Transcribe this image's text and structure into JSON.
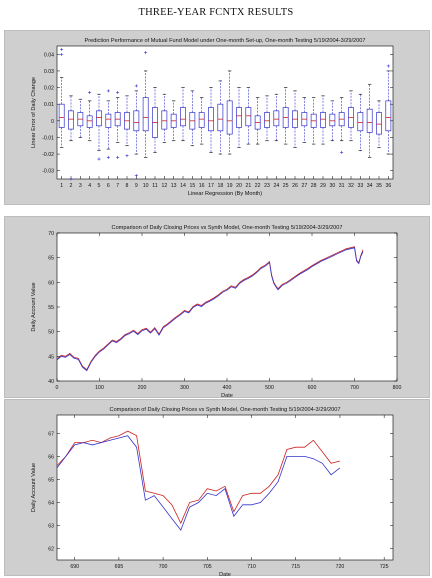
{
  "page_title": "THREE-YEAR FCNTX RESULTS",
  "chart_data": [
    {
      "type": "box",
      "title": "Prediction Performance of Mutual Fund Model under One-month Set-up, One-month Testing 5/19/2004-3/29/2007",
      "xlabel": "Linear Regression (By Month)",
      "ylabel": "Linear Error of Daily Change",
      "ylim": [
        -0.035,
        0.045
      ],
      "yticks": [
        -0.03,
        -0.02,
        -0.01,
        0,
        0.01,
        0.02,
        0.03,
        0.04
      ],
      "ytick_labels": [
        "-0.03",
        "-0.02",
        "-0.01",
        "0",
        "0.01",
        "0.02",
        "0.03",
        "0.04"
      ],
      "categories": [
        "1",
        "2",
        "3",
        "4",
        "5",
        "6",
        "7",
        "8",
        "9",
        "10",
        "11",
        "12",
        "13",
        "14",
        "15",
        "16",
        "17",
        "18",
        "19",
        "20",
        "21",
        "22",
        "23",
        "24",
        "25",
        "26",
        "27",
        "28",
        "29",
        "30",
        "31",
        "32",
        "33",
        "34",
        "35",
        "36"
      ],
      "grid": false,
      "box_color": "#3333cc",
      "median_color": "#cc2222",
      "boxes": [
        {
          "q1": -0.004,
          "median": 0.002,
          "q3": 0.01,
          "whisker_low": -0.016,
          "whisker_high": 0.026,
          "outliers": [
            0.04,
            0.043
          ]
        },
        {
          "q1": -0.005,
          "median": 0.001,
          "q3": 0.006,
          "whisker_low": -0.012,
          "whisker_high": 0.015,
          "outliers": [
            -0.035
          ]
        },
        {
          "q1": -0.003,
          "median": 0.001,
          "q3": 0.005,
          "whisker_low": -0.01,
          "whisker_high": 0.013,
          "outliers": []
        },
        {
          "q1": -0.004,
          "median": 0.0,
          "q3": 0.003,
          "whisker_low": -0.012,
          "whisker_high": 0.012,
          "outliers": [
            0.017
          ]
        },
        {
          "q1": -0.003,
          "median": 0.002,
          "q3": 0.006,
          "whisker_low": -0.018,
          "whisker_high": 0.016,
          "outliers": [
            -0.023
          ]
        },
        {
          "q1": -0.004,
          "median": 0.001,
          "q3": 0.004,
          "whisker_low": -0.017,
          "whisker_high": 0.012,
          "outliers": [
            -0.022,
            0.018
          ]
        },
        {
          "q1": -0.003,
          "median": 0.001,
          "q3": 0.005,
          "whisker_low": -0.013,
          "whisker_high": 0.014,
          "outliers": [
            0.017,
            -0.022
          ]
        },
        {
          "q1": -0.005,
          "median": 0.0,
          "q3": 0.005,
          "whisker_low": -0.015,
          "whisker_high": 0.015,
          "outliers": [
            -0.021
          ]
        },
        {
          "q1": -0.006,
          "median": -0.001,
          "q3": 0.006,
          "whisker_low": -0.02,
          "whisker_high": 0.018,
          "outliers": [
            -0.033,
            0.021
          ]
        },
        {
          "q1": -0.006,
          "median": 0.002,
          "q3": 0.014,
          "whisker_low": -0.022,
          "whisker_high": 0.03,
          "outliers": [
            0.041
          ]
        },
        {
          "q1": -0.01,
          "median": -0.001,
          "q3": 0.008,
          "whisker_low": -0.019,
          "whisker_high": 0.02,
          "outliers": []
        },
        {
          "q1": -0.005,
          "median": 0.0,
          "q3": 0.006,
          "whisker_low": -0.013,
          "whisker_high": 0.016,
          "outliers": []
        },
        {
          "q1": -0.004,
          "median": 0.0,
          "q3": 0.004,
          "whisker_low": -0.012,
          "whisker_high": 0.012,
          "outliers": []
        },
        {
          "q1": -0.003,
          "median": 0.001,
          "q3": 0.008,
          "whisker_low": -0.012,
          "whisker_high": 0.02,
          "outliers": []
        },
        {
          "q1": -0.005,
          "median": 0.0,
          "q3": 0.005,
          "whisker_low": -0.015,
          "whisker_high": 0.018,
          "outliers": []
        },
        {
          "q1": -0.004,
          "median": 0.001,
          "q3": 0.005,
          "whisker_low": -0.014,
          "whisker_high": 0.014,
          "outliers": []
        },
        {
          "q1": -0.006,
          "median": 0.0,
          "q3": 0.008,
          "whisker_low": -0.019,
          "whisker_high": 0.02,
          "outliers": []
        },
        {
          "q1": -0.006,
          "median": 0.001,
          "q3": 0.01,
          "whisker_low": -0.02,
          "whisker_high": 0.024,
          "outliers": []
        },
        {
          "q1": -0.008,
          "median": 0.0,
          "q3": 0.012,
          "whisker_low": -0.02,
          "whisker_high": 0.03,
          "outliers": []
        },
        {
          "q1": -0.004,
          "median": 0.003,
          "q3": 0.008,
          "whisker_low": -0.016,
          "whisker_high": 0.02,
          "outliers": []
        },
        {
          "q1": -0.003,
          "median": 0.003,
          "q3": 0.008,
          "whisker_low": -0.014,
          "whisker_high": 0.02,
          "outliers": []
        },
        {
          "q1": -0.005,
          "median": -0.001,
          "q3": 0.003,
          "whisker_low": -0.014,
          "whisker_high": 0.014,
          "outliers": []
        },
        {
          "q1": -0.004,
          "median": 0.0,
          "q3": 0.005,
          "whisker_low": -0.012,
          "whisker_high": 0.015,
          "outliers": []
        },
        {
          "q1": -0.003,
          "median": 0.001,
          "q3": 0.006,
          "whisker_low": -0.012,
          "whisker_high": 0.016,
          "outliers": []
        },
        {
          "q1": -0.004,
          "median": 0.002,
          "q3": 0.008,
          "whisker_low": -0.014,
          "whisker_high": 0.02,
          "outliers": []
        },
        {
          "q1": -0.004,
          "median": 0.001,
          "q3": 0.006,
          "whisker_low": -0.016,
          "whisker_high": 0.018,
          "outliers": []
        },
        {
          "q1": -0.003,
          "median": 0.001,
          "q3": 0.005,
          "whisker_low": -0.013,
          "whisker_high": 0.014,
          "outliers": []
        },
        {
          "q1": -0.004,
          "median": 0.0,
          "q3": 0.004,
          "whisker_low": -0.014,
          "whisker_high": 0.014,
          "outliers": []
        },
        {
          "q1": -0.004,
          "median": 0.001,
          "q3": 0.005,
          "whisker_low": -0.014,
          "whisker_high": 0.015,
          "outliers": []
        },
        {
          "q1": -0.003,
          "median": 0.0,
          "q3": 0.004,
          "whisker_low": -0.012,
          "whisker_high": 0.012,
          "outliers": []
        },
        {
          "q1": -0.003,
          "median": 0.001,
          "q3": 0.005,
          "whisker_low": -0.012,
          "whisker_high": 0.014,
          "outliers": [
            -0.019
          ]
        },
        {
          "q1": -0.004,
          "median": 0.002,
          "q3": 0.008,
          "whisker_low": -0.012,
          "whisker_high": 0.018,
          "outliers": []
        },
        {
          "q1": -0.006,
          "median": -0.001,
          "q3": 0.005,
          "whisker_low": -0.018,
          "whisker_high": 0.016,
          "outliers": []
        },
        {
          "q1": -0.007,
          "median": -0.001,
          "q3": 0.007,
          "whisker_low": -0.022,
          "whisker_high": 0.022,
          "outliers": []
        },
        {
          "q1": -0.008,
          "median": -0.002,
          "q3": 0.005,
          "whisker_low": -0.016,
          "whisker_high": 0.012,
          "outliers": []
        },
        {
          "q1": -0.006,
          "median": 0.002,
          "q3": 0.012,
          "whisker_low": -0.02,
          "whisker_high": 0.03,
          "outliers": [
            0.033
          ]
        }
      ]
    },
    {
      "type": "line",
      "title": "Comparison of Daily Closing Prices vs Synth Model, One-month Testing 5/19/2004-3/29/2007",
      "xlabel": "Date",
      "ylabel": "Daily Account Value",
      "xlim": [
        0,
        800
      ],
      "ylim": [
        40,
        70
      ],
      "xticks": [
        0,
        100,
        200,
        300,
        400,
        500,
        600,
        700,
        800
      ],
      "xtick_labels": [
        "0",
        "100",
        "200",
        "300",
        "400",
        "500",
        "600",
        "700",
        "800"
      ],
      "yticks": [
        40,
        45,
        50,
        55,
        60,
        65,
        70
      ],
      "ytick_labels": [
        "40",
        "45",
        "50",
        "55",
        "60",
        "65",
        "70"
      ],
      "grid": false,
      "series": [
        {
          "color": "#cc2222",
          "x": [
            0,
            10,
            20,
            30,
            40,
            50,
            60,
            70,
            80,
            90,
            100,
            110,
            120,
            130,
            140,
            150,
            160,
            170,
            180,
            190,
            200,
            210,
            220,
            230,
            240,
            250,
            260,
            270,
            280,
            290,
            300,
            310,
            320,
            330,
            340,
            350,
            360,
            370,
            380,
            390,
            400,
            410,
            420,
            430,
            440,
            450,
            460,
            470,
            480,
            490,
            500,
            505,
            510,
            515,
            520,
            530,
            540,
            550,
            560,
            570,
            580,
            590,
            600,
            610,
            620,
            630,
            640,
            650,
            660,
            670,
            680,
            690,
            700,
            705,
            710,
            715,
            720
          ],
          "y": [
            44.5,
            45.2,
            45.0,
            45.6,
            44.8,
            44.6,
            43.0,
            42.3,
            44.0,
            45.2,
            46.1,
            46.7,
            47.5,
            48.3,
            48.0,
            48.6,
            49.4,
            49.8,
            50.3,
            49.6,
            50.4,
            50.7,
            49.9,
            50.8,
            49.5,
            51.0,
            51.6,
            52.3,
            53.0,
            53.6,
            54.3,
            54.0,
            55.1,
            55.6,
            55.3,
            56.0,
            56.4,
            56.9,
            57.5,
            58.2,
            58.6,
            59.3,
            59.0,
            60.0,
            60.6,
            61.0,
            61.5,
            62.2,
            63.0,
            63.5,
            64.2,
            61.5,
            60.0,
            59.3,
            58.7,
            59.6,
            60.0,
            60.6,
            61.2,
            61.8,
            62.3,
            62.8,
            63.4,
            63.9,
            64.4,
            64.8,
            65.2,
            65.6,
            66.0,
            66.4,
            66.8,
            67.0,
            67.2,
            64.5,
            64.0,
            65.5,
            66.6
          ]
        },
        {
          "color": "#3333cc",
          "x": [
            0,
            10,
            20,
            30,
            40,
            50,
            60,
            70,
            80,
            90,
            100,
            110,
            120,
            130,
            140,
            150,
            160,
            170,
            180,
            190,
            200,
            210,
            220,
            230,
            240,
            250,
            260,
            270,
            280,
            290,
            300,
            310,
            320,
            330,
            340,
            350,
            360,
            370,
            380,
            390,
            400,
            410,
            420,
            430,
            440,
            450,
            460,
            470,
            480,
            490,
            500,
            505,
            510,
            515,
            520,
            530,
            540,
            550,
            560,
            570,
            580,
            590,
            600,
            610,
            620,
            630,
            640,
            650,
            660,
            670,
            680,
            690,
            700,
            705,
            710,
            715,
            720
          ],
          "y": [
            44.3,
            45.0,
            44.8,
            45.4,
            44.6,
            44.4,
            42.8,
            42.1,
            43.8,
            45.0,
            45.9,
            46.5,
            47.3,
            48.1,
            47.8,
            48.4,
            49.2,
            49.6,
            50.1,
            49.4,
            50.2,
            50.5,
            49.7,
            50.6,
            49.3,
            50.8,
            51.4,
            52.1,
            52.8,
            53.4,
            54.1,
            53.8,
            54.9,
            55.4,
            55.1,
            55.8,
            56.2,
            56.7,
            57.3,
            58.0,
            58.4,
            59.1,
            58.8,
            59.8,
            60.4,
            60.8,
            61.3,
            62.0,
            62.8,
            63.3,
            64.0,
            61.3,
            59.8,
            59.1,
            58.5,
            59.4,
            59.8,
            60.4,
            61.0,
            61.6,
            62.1,
            62.6,
            63.2,
            63.7,
            64.2,
            64.6,
            65.0,
            65.4,
            65.8,
            66.2,
            66.6,
            66.8,
            67.0,
            64.3,
            63.8,
            65.3,
            66.2
          ]
        }
      ]
    },
    {
      "type": "line",
      "title": "Comparison of Daily Closing Prices vs Synth Model, One-month Testing 5/19/2004-3/29/2007",
      "xlabel": "Date",
      "ylabel": "Daily Account Value",
      "xlim": [
        688,
        726
      ],
      "ylim": [
        61.5,
        67.8
      ],
      "xticks": [
        690,
        695,
        700,
        705,
        710,
        715,
        720,
        725
      ],
      "xtick_labels": [
        "690",
        "695",
        "700",
        "705",
        "710",
        "715",
        "720",
        "725"
      ],
      "yticks": [
        62,
        63,
        64,
        65,
        66,
        67
      ],
      "ytick_labels": [
        "62",
        "63",
        "64",
        "65",
        "66",
        "67"
      ],
      "grid": false,
      "series": [
        {
          "color": "#cc2222",
          "x": [
            688,
            689,
            690,
            691,
            692,
            693,
            694,
            695,
            696,
            697,
            698,
            699,
            700,
            701,
            702,
            703,
            704,
            705,
            706,
            707,
            708,
            709,
            710,
            711,
            712,
            713,
            714,
            715,
            716,
            717,
            718,
            719,
            720
          ],
          "y": [
            65.6,
            66.0,
            66.6,
            66.6,
            66.7,
            66.6,
            66.8,
            66.9,
            67.1,
            66.9,
            64.5,
            64.4,
            64.3,
            63.9,
            63.1,
            64.0,
            64.1,
            64.6,
            64.5,
            64.7,
            63.6,
            64.3,
            64.4,
            64.4,
            64.7,
            65.2,
            66.3,
            66.4,
            66.4,
            66.7,
            66.2,
            65.7,
            65.8
          ]
        },
        {
          "color": "#3333cc",
          "x": [
            688,
            689,
            690,
            691,
            692,
            693,
            694,
            695,
            696,
            697,
            698,
            699,
            700,
            701,
            702,
            703,
            704,
            705,
            706,
            707,
            708,
            709,
            710,
            711,
            712,
            713,
            714,
            715,
            716,
            717,
            718,
            719,
            720
          ],
          "y": [
            65.5,
            66.0,
            66.5,
            66.6,
            66.5,
            66.6,
            66.7,
            66.8,
            66.9,
            66.4,
            64.1,
            64.3,
            63.8,
            63.3,
            62.8,
            63.8,
            64.0,
            64.4,
            64.3,
            64.6,
            63.4,
            63.9,
            63.9,
            64.0,
            64.4,
            64.9,
            66.0,
            66.0,
            66.0,
            65.9,
            65.7,
            65.2,
            65.5
          ]
        }
      ]
    }
  ]
}
